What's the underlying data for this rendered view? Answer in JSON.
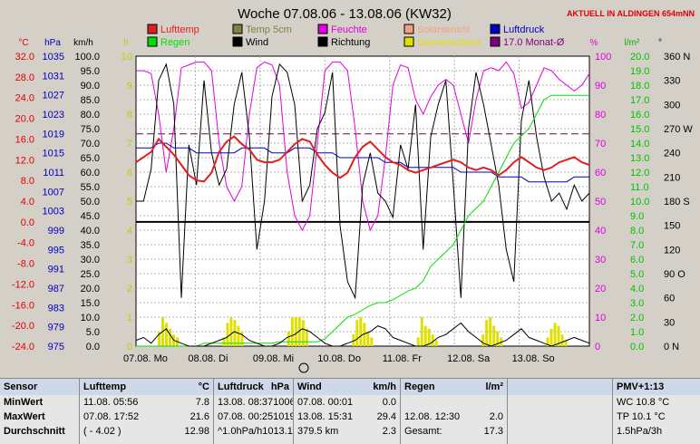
{
  "title": "Woche 07.08.06 - 13.08.06 (KW32)",
  "location_note": "AKTUELL IN ALDINGEN 654mNN",
  "axis_units": {
    "temp": "°C",
    "pressure": "hPa",
    "wind": "km/h",
    "sun": "h",
    "humidity": "%",
    "rain": "l/m²",
    "direction": "°"
  },
  "legend": [
    {
      "label": "Lufttemp",
      "color": "#e02020"
    },
    {
      "label": "Temp 5cm",
      "color": "#808040"
    },
    {
      "label": "Feuchte",
      "color": "#e000e0"
    },
    {
      "label": "Solarsensor",
      "color": "#f0a080"
    },
    {
      "label": "Luftdruck",
      "color": "#0000c0"
    },
    {
      "label": "Regen",
      "color": "#00e000"
    },
    {
      "label": "Wind",
      "color": "#000000"
    },
    {
      "label": "Richtung",
      "color": "#000000"
    },
    {
      "label": "Sonnenschein",
      "color": "#e0e000"
    },
    {
      "label": "17.0 Monat-Ø",
      "color": "#800080"
    }
  ],
  "chart_data": {
    "type": "line",
    "title": "Woche 07.08.06 - 13.08.06 (KW32)",
    "x_tick_labels": [
      "07.08. Mo",
      "08.08. Di",
      "09.08. Mi",
      "10.08. Do",
      "11.08. Fr",
      "12.08. Sa",
      "13.08. So"
    ],
    "axes": {
      "temp_c": {
        "min": -24.0,
        "max": 32.0,
        "ticks": [
          "32.0",
          "28.0",
          "24.0",
          "20.0",
          "16.0",
          "12.0",
          "8.0",
          "4.0",
          "0.0",
          "-4.0",
          "-8.0",
          "-12.0",
          "-16.0",
          "-20.0",
          "-24.0"
        ]
      },
      "pressure_hpa": {
        "min": 975,
        "max": 1035,
        "ticks": [
          "1035",
          "1031",
          "1027",
          "1023",
          "1019",
          "1015",
          "1011",
          "1007",
          "1003",
          "999",
          "995",
          "991",
          "987",
          "983",
          "979",
          "975"
        ]
      },
      "wind_kmh": {
        "min": 0,
        "max": 100,
        "ticks": [
          "100.0",
          "95.0",
          "90.0",
          "85.0",
          "80.0",
          "75.0",
          "70.0",
          "65.0",
          "60.0",
          "55.0",
          "50.0",
          "45.0",
          "40.0",
          "35.0",
          "30.0",
          "25.0",
          "20.0",
          "15.0",
          "10.0",
          "5.0",
          "0.0"
        ]
      },
      "sun_h": {
        "min": 0,
        "max": 10,
        "ticks": [
          "10",
          "9",
          "8",
          "7",
          "6",
          "5",
          "4",
          "3",
          "2",
          "1",
          "0"
        ]
      },
      "humidity_pct": {
        "min": 0,
        "max": 100,
        "ticks": [
          "100",
          "90",
          "80",
          "70",
          "60",
          "50",
          "40",
          "30",
          "20",
          "10",
          "0"
        ]
      },
      "rain_lm2": {
        "min": 0,
        "max": 20,
        "ticks": [
          "20.0",
          "19.0",
          "18.0",
          "17.0",
          "16.0",
          "15.0",
          "14.0",
          "13.0",
          "12.0",
          "11.0",
          "10.0",
          "9.0",
          "8.0",
          "7.0",
          "6.0",
          "5.0",
          "4.0",
          "3.0",
          "2.0",
          "1.0",
          "0.0"
        ]
      },
      "direction_deg": {
        "min": 0,
        "max": 360,
        "ticks": [
          "360 N",
          "330",
          "300",
          "270 W",
          "240",
          "210",
          "180 S",
          "150",
          "120",
          "90 O",
          "60",
          "30",
          "0 N"
        ]
      }
    },
    "month_avg_temp": 17.0,
    "series": [
      {
        "name": "Lufttemp",
        "unit": "°C",
        "values": [
          11.5,
          12.5,
          13.5,
          16.0,
          14.5,
          13.0,
          11.0,
          9.0,
          8.0,
          7.8,
          9.5,
          13.5,
          15.5,
          16.5,
          15.0,
          14.0,
          12.0,
          11.5,
          11.5,
          12.0,
          13.5,
          15.0,
          16.0,
          15.5,
          13.0,
          11.0,
          9.5,
          8.5,
          9.5,
          12.5,
          14.5,
          15.5,
          14.0,
          12.5,
          11.5,
          11.0,
          10.0,
          9.5,
          10.0,
          10.5,
          11.0,
          11.5,
          12.0,
          11.5,
          10.5,
          10.0,
          10.5,
          10.0,
          9.0,
          10.0,
          11.5,
          12.5,
          11.5,
          10.5,
          10.0,
          10.5,
          11.5,
          12.0,
          12.5,
          11.5,
          11.0
        ]
      },
      {
        "name": "Luftdruck",
        "unit": "hPa",
        "values": [
          1016,
          1016,
          1016,
          1017,
          1017,
          1016,
          1016,
          1016,
          1015,
          1015,
          1015,
          1015,
          1015,
          1015,
          1016,
          1016,
          1016,
          1016,
          1015,
          1015,
          1015,
          1016,
          1016,
          1016,
          1015,
          1015,
          1015,
          1014,
          1014,
          1014,
          1014,
          1014,
          1014,
          1013,
          1013,
          1013,
          1012,
          1012,
          1012,
          1012,
          1012,
          1012,
          1012,
          1011,
          1011,
          1011,
          1011,
          1011,
          1010,
          1010,
          1010,
          1010,
          1009,
          1009,
          1009,
          1009,
          1009,
          1009,
          1010,
          1010,
          1010
        ]
      },
      {
        "name": "Feuchte",
        "unit": "%",
        "values": [
          95,
          95,
          94,
          80,
          60,
          75,
          96,
          97,
          98,
          98,
          95,
          70,
          55,
          50,
          55,
          80,
          96,
          98,
          97,
          90,
          60,
          45,
          40,
          45,
          70,
          95,
          98,
          98,
          95,
          75,
          50,
          40,
          45,
          65,
          90,
          97,
          96,
          85,
          80,
          86,
          90,
          92,
          90,
          80,
          70,
          85,
          95,
          96,
          95,
          98,
          94,
          82,
          84,
          90,
          96,
          95,
          92,
          90,
          88,
          90,
          94
        ]
      },
      {
        "name": "Regen",
        "unit": "l/m²",
        "values": [
          0,
          0,
          0,
          0,
          0,
          0,
          0,
          0,
          0,
          0.2,
          0.2,
          0.2,
          0.2,
          0.2,
          0.2,
          0.2,
          0.2,
          0.2,
          0.2,
          0.3,
          0.3,
          0.3,
          0.3,
          0.3,
          0.3,
          0.5,
          1.0,
          1.5,
          2.0,
          2.2,
          2.5,
          2.8,
          3.0,
          3.0,
          3.2,
          3.5,
          3.8,
          4.0,
          4.5,
          5.5,
          6.0,
          6.5,
          7.0,
          8.0,
          9.0,
          9.5,
          10.0,
          11.0,
          12.0,
          13.0,
          14.0,
          14.5,
          15.0,
          16.0,
          17.0,
          17.3,
          17.3,
          17.3,
          17.3,
          17.3,
          17.3
        ]
      },
      {
        "name": "Wind",
        "unit": "km/h",
        "values": [
          2,
          3,
          1,
          4,
          6,
          2,
          1,
          0,
          0,
          0,
          1,
          2,
          3,
          5,
          4,
          2,
          1,
          0,
          0,
          1,
          3,
          4,
          6,
          5,
          3,
          1,
          0,
          0,
          1,
          2,
          4,
          5,
          7,
          6,
          3,
          2,
          1,
          0,
          0,
          1,
          3,
          4,
          6,
          8,
          5,
          3,
          1,
          0,
          1,
          2,
          4,
          6,
          3,
          2,
          1,
          0,
          1,
          2,
          3,
          2,
          1
        ]
      },
      {
        "name": "Richtung",
        "unit": "°",
        "values": [
          180,
          180,
          220,
          330,
          350,
          300,
          60,
          250,
          200,
          330,
          240,
          200,
          220,
          300,
          340,
          260,
          120,
          180,
          310,
          350,
          340,
          300,
          180,
          200,
          270,
          290,
          340,
          150,
          80,
          60,
          200,
          240,
          190,
          180,
          160,
          250,
          220,
          300,
          120,
          260,
          300,
          330,
          200,
          60,
          270,
          340,
          300,
          250,
          200,
          120,
          80,
          280,
          330,
          260,
          210,
          180,
          190,
          170,
          200,
          180,
          190
        ]
      },
      {
        "name": "Sonnenschein",
        "unit": "h",
        "days": [
          {
            "day": "07.08. Mo",
            "hours": [
              0.5,
              1.0,
              0.8,
              0.6,
              0.4,
              0.3
            ]
          },
          {
            "day": "08.08. Di",
            "hours": [
              0.3,
              0.8,
              1.0,
              0.9,
              0.7,
              0.5
            ]
          },
          {
            "day": "09.08. Mi",
            "hours": [
              0.5,
              1.0,
              1.0,
              1.0,
              0.9,
              0.6
            ]
          },
          {
            "day": "10.08. Do",
            "hours": [
              0.4,
              0.9,
              1.0,
              0.8,
              0.5,
              0.3
            ]
          },
          {
            "day": "11.08. Fr",
            "hours": [
              0.3,
              1.0,
              0.7,
              0.6,
              0.4,
              0.2
            ]
          },
          {
            "day": "12.08. Sa",
            "hours": [
              0.4,
              0.9,
              1.0,
              0.7,
              0.5,
              0.3
            ]
          },
          {
            "day": "13.08. So",
            "hours": [
              0.3,
              0.6,
              0.8,
              0.7,
              0.4,
              0.2
            ]
          }
        ]
      }
    ]
  },
  "stats": {
    "sensor": {
      "header": "Sensor",
      "rows": [
        "MinWert",
        "MaxWert",
        "Durchschnitt"
      ]
    },
    "lufttemp": {
      "header": "Lufttemp",
      "unit": "°C",
      "rows": [
        [
          "11.08.  05:56",
          "7.8"
        ],
        [
          "07.08.  17:52",
          "21.6"
        ],
        [
          "( - 4.02 )",
          "12.98"
        ]
      ]
    },
    "luftdruck": {
      "header": "Luftdruck",
      "unit": "hPa",
      "rows": [
        [
          "13.08.  08:37",
          "1006"
        ],
        [
          "07.08.  00:25",
          "1019"
        ],
        [
          "^1.0hPa/h",
          "1013.1"
        ]
      ]
    },
    "wind": {
      "header": "Wind",
      "unit": "km/h",
      "rows": [
        [
          "07.08.  00:01",
          "0.0"
        ],
        [
          "13.08.  15:31",
          "29.4"
        ],
        [
          "379.5 km",
          "2.3"
        ]
      ]
    },
    "regen": {
      "header": "Regen",
      "unit": "l/m²",
      "rows": [
        [
          "",
          ""
        ],
        [
          "12.08.  12:30",
          "2.0"
        ],
        [
          "Gesamt:",
          "17.3"
        ]
      ]
    },
    "pmv": {
      "header": "PMV+1:13",
      "rows": [
        "WC 10.8 °C",
        "TP 10.1 °C",
        "1.5hPa/3h"
      ]
    }
  }
}
